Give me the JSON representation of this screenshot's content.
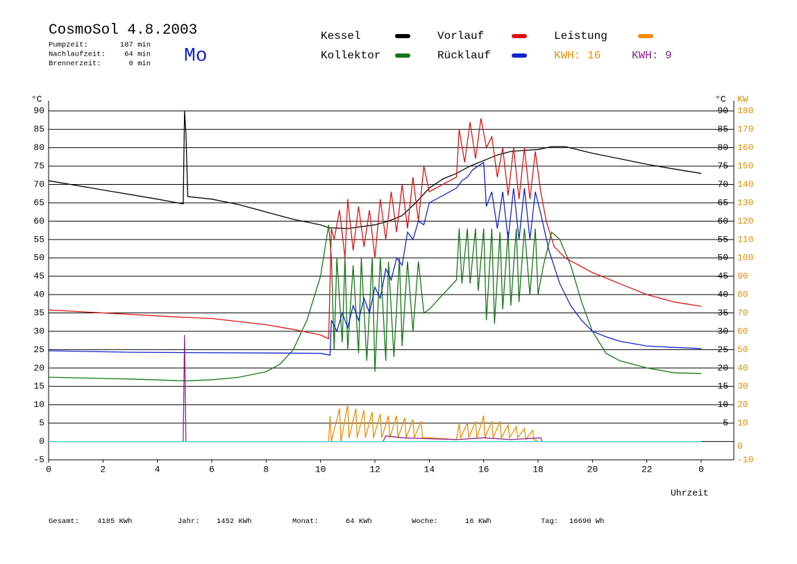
{
  "header": {
    "title": "CosmoSol 4.8.2003",
    "day": "Mo",
    "stats": [
      {
        "label": "Pumpzeit:",
        "value": "187 min"
      },
      {
        "label": "Nachlaufzeit:",
        "value": "64 min"
      },
      {
        "label": "Brennerzeit:",
        "value": "0 min"
      }
    ]
  },
  "chart_data": {
    "type": "line",
    "x_label": "Uhrzeit",
    "y_label": "°C",
    "y2_label": "KW",
    "xlim": [
      0,
      25.2
    ],
    "xticks": [
      0,
      2,
      4,
      6,
      8,
      10,
      12,
      14,
      16,
      18,
      20,
      22,
      {
        "value": 24,
        "label": "0"
      }
    ],
    "ylim": [
      -5,
      92.8
    ],
    "yticks": [
      -5,
      0,
      5,
      10,
      15,
      20,
      25,
      30,
      35,
      40,
      45,
      50,
      55,
      60,
      65,
      70,
      75,
      80,
      85,
      90
    ],
    "y2lim": [
      -10,
      185.6
    ],
    "y2ticks": [
      -10,
      0,
      10,
      20,
      30,
      40,
      50,
      60,
      70,
      80,
      90,
      100,
      110,
      120,
      130,
      140,
      150,
      160,
      170,
      180
    ],
    "y2_color": "#e88a00",
    "grid": true,
    "series": [
      {
        "name": "Kessel",
        "color": "#000000",
        "x": [
          0,
          2,
          4,
          4.95,
          5.0,
          5.05,
          5.12,
          6,
          7,
          8,
          9,
          10,
          10.3,
          11,
          12,
          12.5,
          13,
          13.5,
          14,
          14.5,
          15,
          15.5,
          16,
          16.5,
          17,
          17.5,
          18,
          18.5,
          19,
          20,
          21,
          22,
          23,
          24
        ],
        "values": [
          71,
          68.5,
          66,
          64.7,
          90,
          84,
          66.7,
          66,
          64.5,
          62.5,
          60.5,
          59,
          58.2,
          58,
          59,
          60,
          61.5,
          65,
          69,
          71.5,
          73,
          75,
          76.5,
          78,
          79,
          79.3,
          79.5,
          80.3,
          80.3,
          78.5,
          77,
          75.5,
          74.2,
          73
        ]
      },
      {
        "name": "Kollektor",
        "color": "#117711",
        "x": [
          0,
          3,
          5,
          6,
          7,
          8,
          8.5,
          9,
          9.5,
          10,
          10.3,
          10.4,
          10.5,
          10.6,
          10.8,
          10.9,
          11.0,
          11.2,
          11.4,
          11.5,
          11.7,
          11.9,
          12.0,
          12.2,
          12.4,
          12.5,
          12.7,
          12.9,
          13.0,
          13.2,
          13.4,
          13.6,
          13.8,
          14.0,
          14.5,
          15,
          15.1,
          15.2,
          15.4,
          15.5,
          15.7,
          15.8,
          16.0,
          16.1,
          16.3,
          16.4,
          16.6,
          16.7,
          16.9,
          17.0,
          17.2,
          17.3,
          17.5,
          17.7,
          17.9,
          18.0,
          18.2,
          18.5,
          18.8,
          19.2,
          19.6,
          20,
          20.5,
          21,
          22,
          23,
          24
        ],
        "values": [
          17.5,
          17,
          16.5,
          16.8,
          17.5,
          19,
          21,
          25,
          33,
          45,
          59,
          50,
          25,
          50,
          27,
          50,
          25,
          48,
          24,
          50,
          22,
          50,
          19,
          50,
          22,
          49,
          23,
          50,
          26,
          49,
          30,
          49,
          35,
          36,
          40,
          44,
          58,
          43,
          58,
          43,
          58,
          41,
          58,
          33,
          58,
          32,
          57,
          36,
          57,
          37,
          58,
          38,
          58,
          40,
          58,
          40,
          48,
          57,
          55,
          48,
          38,
          30,
          24,
          22,
          20,
          18.7,
          18.5
        ]
      },
      {
        "name": "Vorlauf",
        "color": "#dd1111",
        "x": [
          0,
          2,
          4,
          5,
          6,
          8,
          9,
          10,
          10.3,
          10.4,
          10.5,
          10.7,
          10.9,
          11.0,
          11.2,
          11.4,
          11.6,
          11.8,
          12.0,
          12.2,
          12.4,
          12.6,
          12.8,
          13.0,
          13.2,
          13.4,
          13.6,
          13.8,
          14.0,
          14.5,
          15.0,
          15.1,
          15.3,
          15.5,
          15.7,
          15.9,
          16.1,
          16.3,
          16.5,
          16.7,
          16.9,
          17.1,
          17.3,
          17.5,
          17.7,
          17.9,
          18.1,
          18.3,
          18.6,
          19,
          20,
          21,
          22,
          23,
          24
        ],
        "values": [
          35.8,
          35,
          34.2,
          33.8,
          33.5,
          31.8,
          30.5,
          29,
          28,
          58,
          55,
          63,
          50,
          66,
          52,
          64,
          53,
          63,
          50,
          66,
          55,
          68,
          57,
          70,
          58,
          72,
          60,
          75,
          68,
          70,
          72,
          85,
          76,
          87,
          77,
          88,
          80,
          83,
          72,
          80,
          67,
          80,
          66,
          80,
          66,
          79,
          68,
          60,
          53,
          50,
          46,
          43,
          40,
          38,
          36.8
        ]
      },
      {
        "name": "Rücklauf",
        "color": "#1122cc",
        "x": [
          0,
          3,
          5,
          8,
          10,
          10.35,
          10.4,
          10.6,
          10.8,
          11.0,
          11.2,
          11.4,
          11.6,
          11.8,
          12.0,
          12.2,
          12.4,
          12.6,
          12.8,
          13.0,
          13.2,
          13.4,
          13.6,
          13.8,
          14.0,
          14.5,
          15.0,
          15.2,
          15.4,
          15.6,
          15.8,
          16.0,
          16.1,
          16.3,
          16.5,
          16.7,
          16.9,
          17.1,
          17.3,
          17.5,
          17.7,
          17.9,
          18.1,
          18.4,
          18.8,
          19.2,
          19.6,
          20,
          20.5,
          21,
          22,
          23,
          24
        ],
        "values": [
          24.7,
          24.3,
          24.2,
          24.1,
          24,
          23.5,
          33,
          30,
          35,
          31,
          37,
          33,
          39,
          35,
          42,
          39,
          47,
          44,
          50,
          48,
          57,
          55,
          60,
          59,
          65,
          67,
          69,
          71,
          72,
          74,
          75,
          76,
          64,
          68,
          58,
          68,
          55,
          69,
          55,
          69,
          55,
          68,
          62,
          52,
          43,
          37,
          33,
          30,
          28.5,
          27.3,
          26,
          25.6,
          25.3
        ]
      },
      {
        "name": "Leistung",
        "color": "#f08c00",
        "axis": "y2",
        "kwh_label": "KWH: 16",
        "x": [
          0,
          10.3,
          10.35,
          10.4,
          10.7,
          10.75,
          11.0,
          11.05,
          11.3,
          11.35,
          11.6,
          11.65,
          11.9,
          11.95,
          12.2,
          12.25,
          12.5,
          12.55,
          12.8,
          12.85,
          13.1,
          13.15,
          13.4,
          13.45,
          13.7,
          13.75,
          14.0,
          15,
          15.1,
          15.15,
          15.4,
          15.45,
          15.7,
          15.75,
          16.0,
          16.05,
          16.3,
          16.35,
          16.6,
          16.65,
          16.9,
          16.95,
          17.2,
          17.25,
          17.5,
          17.55,
          17.8,
          17.85,
          18.0,
          24
        ],
        "values": [
          0,
          0,
          14,
          0,
          18,
          0,
          20,
          2,
          18,
          2,
          17,
          2,
          16,
          2,
          15,
          2,
          14,
          2,
          14,
          2,
          13,
          2,
          12,
          2,
          11,
          2,
          2,
          1,
          10,
          2,
          10,
          2,
          11,
          2,
          14,
          2,
          11,
          2,
          11,
          2,
          9,
          2,
          8,
          2,
          7,
          1,
          6,
          1,
          0,
          0
        ]
      },
      {
        "color": "#882288",
        "axis": "y2",
        "kwh_label": "KWH: 9",
        "x": [
          0,
          4.95,
          5.0,
          5.05,
          12.3,
          12.4,
          13,
          14,
          15,
          16,
          17,
          18.1,
          18.15,
          24
        ],
        "values": [
          0,
          0,
          58,
          0,
          0,
          3,
          2,
          1.5,
          1,
          2,
          1,
          2,
          0,
          0
        ]
      },
      {
        "color": "#33dddd",
        "axis": "y2",
        "x": [
          0,
          24
        ],
        "values": [
          0,
          0
        ]
      }
    ]
  },
  "footer": [
    {
      "label": "Gesamt:",
      "value": "4185 KWh"
    },
    {
      "label": "Jahr:",
      "value": "1452 KWh"
    },
    {
      "label": "Monat:",
      "value": "64 KWh"
    },
    {
      "label": "Woche:",
      "value": "16 KWh"
    },
    {
      "label": "Tag:",
      "value": "16690 Wh"
    }
  ]
}
